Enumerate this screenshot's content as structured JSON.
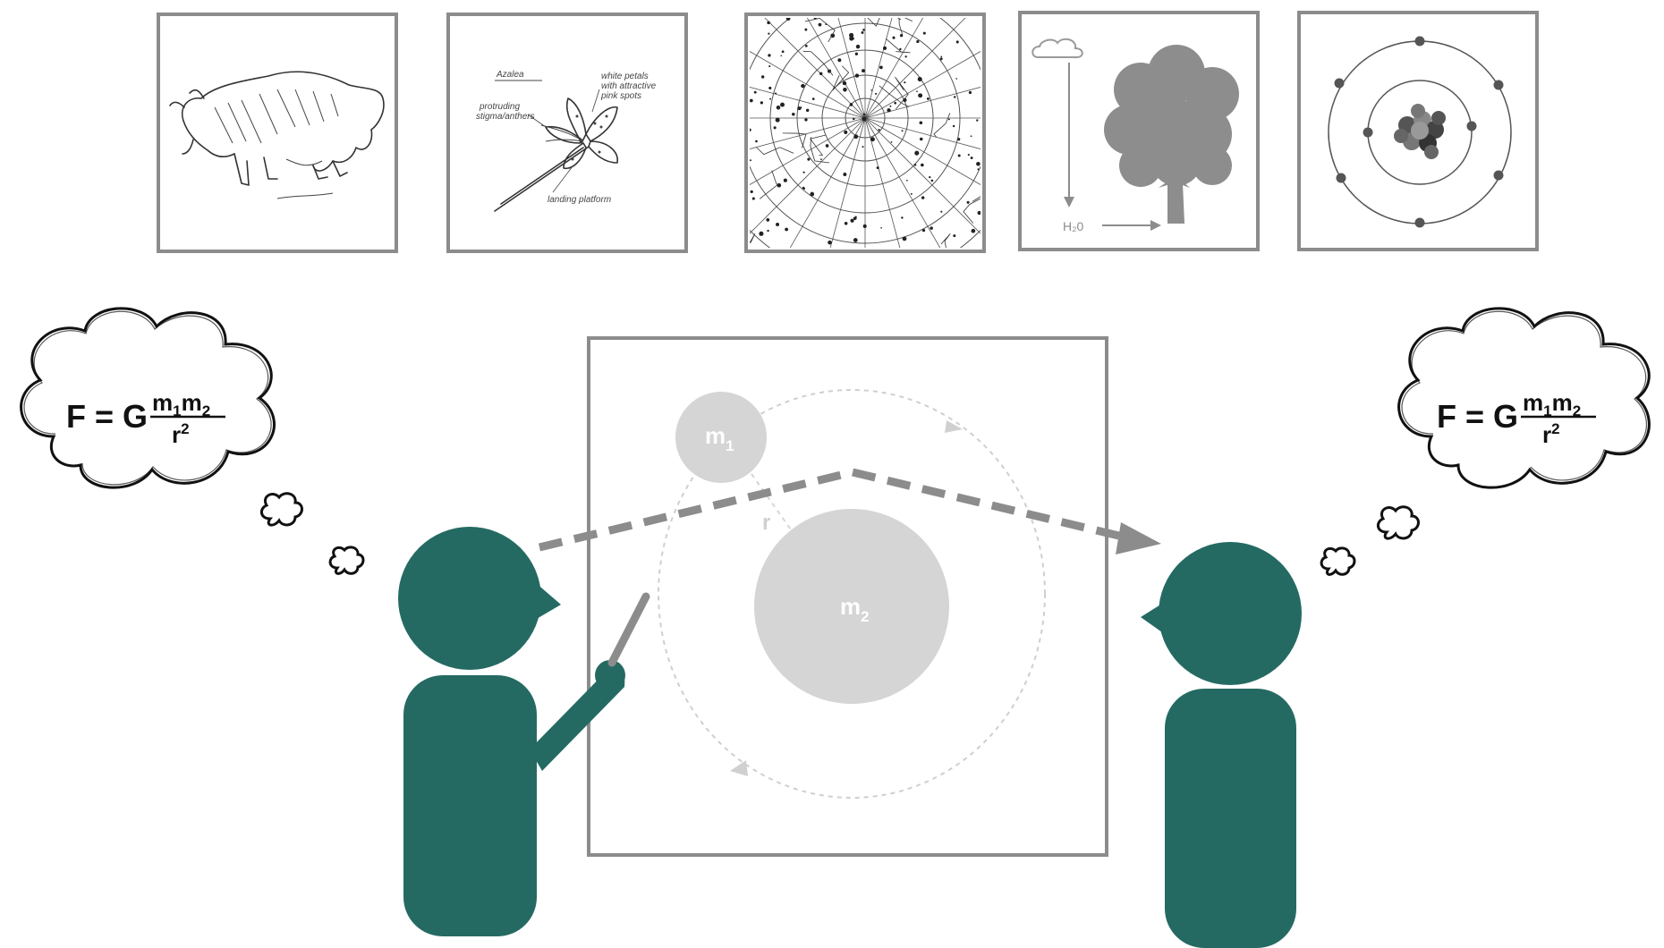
{
  "colors": {
    "person": "#246a63",
    "frame": "#8c8c8c",
    "mass_circle": "#d5d5d5",
    "arrow": "#8c8c8c",
    "orbit": "#cfcfcf"
  },
  "top_panels": [
    {
      "name": "bison-cave-drawing",
      "labels": []
    },
    {
      "name": "azalea-sketch",
      "labels": [
        "Azalea",
        "white petals",
        "with attractive",
        "pink spots",
        "protruding",
        "stigma/anthers",
        "landing platform"
      ]
    },
    {
      "name": "star-chart",
      "labels": []
    },
    {
      "name": "water-cycle-tree",
      "labels": [
        "H₂0"
      ]
    },
    {
      "name": "atom-model",
      "labels": []
    }
  ],
  "equation": {
    "lhs": "F = G",
    "num_m1": "m",
    "num_sub1": "1",
    "num_m2": "m",
    "num_sub2": "2",
    "den_r": "r",
    "den_exp": "2"
  },
  "orbit_diagram": {
    "mass_small_base": "m",
    "mass_small_sub": "1",
    "mass_large_base": "m",
    "mass_large_sub": "2",
    "distance_label": "r"
  }
}
